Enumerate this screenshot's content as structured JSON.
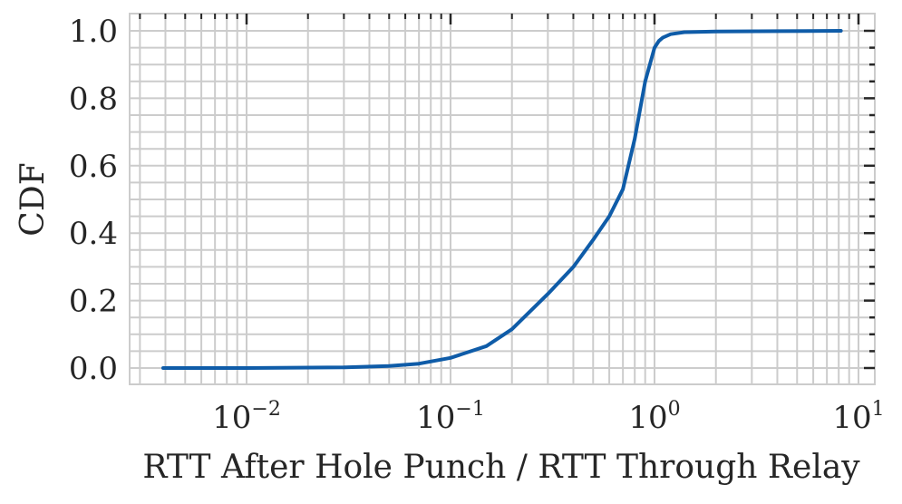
{
  "chart_data": {
    "type": "line",
    "title": "",
    "xlabel": "RTT After Hole Punch / RTT Through Relay",
    "ylabel": "CDF",
    "xscale": "log",
    "xlim": [
      0.0027,
      11
    ],
    "ylim": [
      -0.05,
      1.05
    ],
    "grid": true,
    "grid_color": "#cccccc",
    "line_color": "#0f5ca8",
    "x_ticks": [
      {
        "base": "10",
        "exp": "−2",
        "value": 0.01
      },
      {
        "base": "10",
        "exp": "−1",
        "value": 0.1
      },
      {
        "base": "10",
        "exp": "0",
        "value": 1
      },
      {
        "base": "10",
        "exp": "1",
        "value": 10
      }
    ],
    "y_ticks": [
      "0.0",
      "0.2",
      "0.4",
      "0.6",
      "0.8",
      "1.0"
    ],
    "y_tick_values": [
      0.0,
      0.2,
      0.4,
      0.6,
      0.8,
      1.0
    ],
    "series": [
      {
        "name": "CDF",
        "x": [
          0.0039,
          0.01,
          0.03,
          0.05,
          0.07,
          0.1,
          0.15,
          0.2,
          0.3,
          0.4,
          0.5,
          0.6,
          0.7,
          0.8,
          0.9,
          1.0,
          1.05,
          1.1,
          1.2,
          1.4,
          2.0,
          4.0,
          8.2
        ],
        "y": [
          0.0,
          0.0,
          0.002,
          0.006,
          0.013,
          0.03,
          0.065,
          0.115,
          0.22,
          0.3,
          0.38,
          0.45,
          0.53,
          0.68,
          0.85,
          0.95,
          0.97,
          0.98,
          0.99,
          0.996,
          0.998,
          0.999,
          1.0
        ]
      }
    ]
  }
}
